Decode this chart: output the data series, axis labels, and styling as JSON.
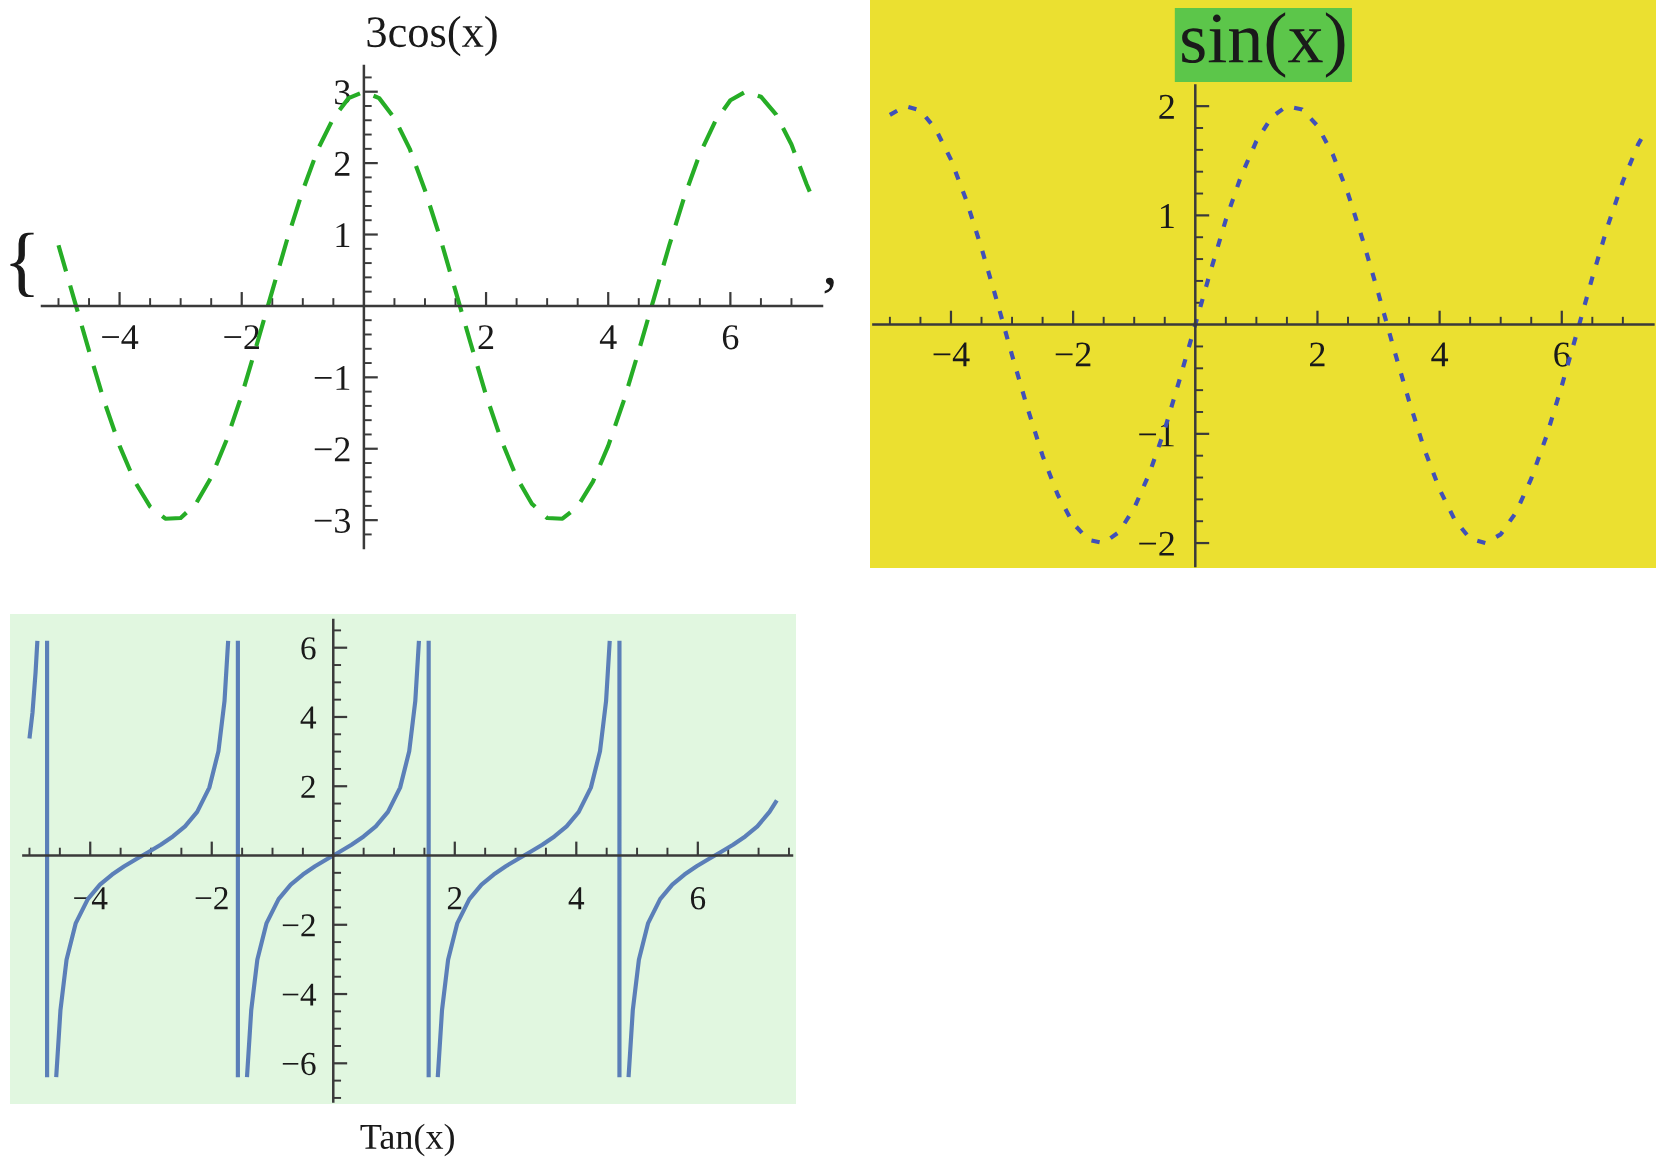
{
  "chart_data": [
    {
      "type": "line",
      "title": "3cos(x)",
      "line_style": "dashed",
      "annotations": [
        "{",
        ","
      ],
      "x": [
        -5,
        -4.75,
        -4.5,
        -4.25,
        -4,
        -3.75,
        -3.5,
        -3.25,
        -3,
        -2.75,
        -2.5,
        -2.25,
        -2,
        -1.75,
        -1.5,
        -1.25,
        -1,
        -0.75,
        -0.5,
        -0.25,
        0,
        0.25,
        0.5,
        0.75,
        1,
        1.25,
        1.5,
        1.75,
        2,
        2.25,
        2.5,
        2.75,
        3,
        3.25,
        3.5,
        3.75,
        4,
        4.25,
        4.5,
        4.75,
        5,
        5.25,
        5.5,
        5.75,
        6,
        6.25,
        6.5,
        6.75,
        7,
        7.25,
        7.3
      ],
      "series": [
        {
          "color": "#26ad26",
          "values": [
            0.85,
            0.11,
            -0.63,
            -1.34,
            -1.96,
            -2.46,
            -2.81,
            -2.98,
            -2.97,
            -2.77,
            -2.4,
            -1.88,
            -1.25,
            -0.53,
            0.21,
            0.95,
            1.62,
            2.2,
            2.63,
            2.91,
            3.0,
            2.91,
            2.63,
            2.2,
            1.62,
            0.95,
            0.21,
            -0.53,
            -1.25,
            -1.88,
            -2.4,
            -2.77,
            -2.97,
            -2.98,
            -2.81,
            -2.46,
            -1.96,
            -1.34,
            -0.63,
            0.11,
            0.85,
            1.54,
            2.13,
            2.58,
            2.88,
            3.0,
            2.93,
            2.68,
            2.26,
            1.7,
            1.6
          ]
        }
      ],
      "xlim": [
        -5.27,
        7.5
      ],
      "ylim": [
        -3.39,
        3.36
      ],
      "xticks": [
        {
          "value": -5,
          "label": null
        },
        {
          "value": -4.5,
          "label": null
        },
        {
          "value": -4,
          "label": "−4"
        },
        {
          "value": -3.5,
          "label": null
        },
        {
          "value": -3,
          "label": null
        },
        {
          "value": -2.5,
          "label": null
        },
        {
          "value": -2,
          "label": "−2"
        },
        {
          "value": -1.5,
          "label": null
        },
        {
          "value": -1,
          "label": null
        },
        {
          "value": -0.5,
          "label": null
        },
        {
          "value": 0.5,
          "label": null
        },
        {
          "value": 1,
          "label": null
        },
        {
          "value": 1.5,
          "label": null
        },
        2,
        {
          "value": 2.5,
          "label": null
        },
        {
          "value": 3,
          "label": null
        },
        {
          "value": 3.5,
          "label": null
        },
        4,
        {
          "value": 4.5,
          "label": null
        },
        {
          "value": 5,
          "label": null
        },
        {
          "value": 5.5,
          "label": null
        },
        6,
        {
          "value": 6.5,
          "label": null
        },
        {
          "value": 7,
          "label": null
        }
      ],
      "yticks": [
        {
          "value": -3.2,
          "label": null
        },
        {
          "value": -3,
          "label": "−3"
        },
        {
          "value": -2.8,
          "label": null
        },
        {
          "value": -2.6,
          "label": null
        },
        {
          "value": -2.4,
          "label": null
        },
        {
          "value": -2.2,
          "label": null
        },
        {
          "value": -2,
          "label": "−2"
        },
        {
          "value": -1.8,
          "label": null
        },
        {
          "value": -1.6,
          "label": null
        },
        {
          "value": -1.4,
          "label": null
        },
        {
          "value": -1.2,
          "label": null
        },
        {
          "value": -1,
          "label": "−1"
        },
        {
          "value": -0.8,
          "label": null
        },
        {
          "value": -0.6,
          "label": null
        },
        {
          "value": -0.4,
          "label": null
        },
        {
          "value": -0.2,
          "label": null
        },
        {
          "value": 0.2,
          "label": null
        },
        {
          "value": 0.4,
          "label": null
        },
        {
          "value": 0.6,
          "label": null
        },
        {
          "value": 0.8,
          "label": null
        },
        1,
        {
          "value": 1.2,
          "label": null
        },
        {
          "value": 1.4,
          "label": null
        },
        {
          "value": 1.6,
          "label": null
        },
        {
          "value": 1.8,
          "label": null
        },
        2,
        {
          "value": 2.2,
          "label": null
        },
        {
          "value": 2.4,
          "label": null
        },
        {
          "value": 2.6,
          "label": null
        },
        {
          "value": 2.8,
          "label": null
        },
        3,
        {
          "value": 3.2,
          "label": null
        }
      ]
    },
    {
      "type": "line",
      "title": "sin(x)",
      "line_style": "dotted",
      "x": [
        -5,
        -4.75,
        -4.5,
        -4.25,
        -4,
        -3.75,
        -3.5,
        -3.25,
        -3,
        -2.75,
        -2.5,
        -2.25,
        -2,
        -1.75,
        -1.5,
        -1.25,
        -1,
        -0.75,
        -0.5,
        -0.25,
        0,
        0.25,
        0.5,
        0.75,
        1,
        1.25,
        1.5,
        1.75,
        2,
        2.25,
        2.5,
        2.75,
        3,
        3.25,
        3.5,
        3.75,
        4,
        4.25,
        4.5,
        4.75,
        5,
        5.25,
        5.5,
        5.75,
        6,
        6.25,
        6.5,
        6.75,
        7,
        7.25,
        7.3
      ],
      "series": [
        {
          "color": "#4050b8",
          "values": [
            1.92,
            2.0,
            1.96,
            1.79,
            1.51,
            1.14,
            0.7,
            0.22,
            -0.28,
            -0.76,
            -1.2,
            -1.56,
            -1.82,
            -1.97,
            -2.0,
            -1.9,
            -1.68,
            -1.36,
            -0.96,
            -0.49,
            0,
            0.49,
            0.96,
            1.36,
            1.68,
            1.9,
            2.0,
            1.97,
            1.82,
            1.56,
            1.2,
            0.76,
            0.28,
            -0.22,
            -0.7,
            -1.14,
            -1.51,
            -1.79,
            -1.96,
            -2.0,
            -1.92,
            -1.72,
            -1.41,
            -1.02,
            -0.56,
            -0.07,
            0.43,
            0.9,
            1.31,
            1.65,
            1.7
          ]
        }
      ],
      "xlim": [
        -5.27,
        7.5
      ],
      "ylim": [
        -2.21,
        2.19
      ],
      "xticks": [
        {
          "value": -5,
          "label": null
        },
        {
          "value": -4.5,
          "label": null
        },
        {
          "value": -4,
          "label": "−4"
        },
        {
          "value": -3.5,
          "label": null
        },
        {
          "value": -3,
          "label": null
        },
        {
          "value": -2.5,
          "label": null
        },
        {
          "value": -2,
          "label": "−2"
        },
        {
          "value": -1.5,
          "label": null
        },
        {
          "value": -1,
          "label": null
        },
        {
          "value": -0.5,
          "label": null
        },
        {
          "value": 0.5,
          "label": null
        },
        {
          "value": 1,
          "label": null
        },
        {
          "value": 1.5,
          "label": null
        },
        2,
        {
          "value": 2.5,
          "label": null
        },
        {
          "value": 3,
          "label": null
        },
        {
          "value": 3.5,
          "label": null
        },
        4,
        {
          "value": 4.5,
          "label": null
        },
        {
          "value": 5,
          "label": null
        },
        {
          "value": 5.5,
          "label": null
        },
        6,
        {
          "value": 6.5,
          "label": null
        },
        {
          "value": 7,
          "label": null
        }
      ],
      "yticks": [
        {
          "value": -2,
          "label": "−2"
        },
        {
          "value": -1.8,
          "label": null
        },
        {
          "value": -1.6,
          "label": null
        },
        {
          "value": -1.4,
          "label": null
        },
        {
          "value": -1.2,
          "label": null
        },
        {
          "value": -1,
          "label": "−1"
        },
        {
          "value": -0.8,
          "label": null
        },
        {
          "value": -0.6,
          "label": null
        },
        {
          "value": -0.4,
          "label": null
        },
        {
          "value": -0.2,
          "label": null
        },
        {
          "value": 0.2,
          "label": null
        },
        {
          "value": 0.4,
          "label": null
        },
        {
          "value": 0.6,
          "label": null
        },
        {
          "value": 0.8,
          "label": null
        },
        1,
        {
          "value": 1.2,
          "label": null
        },
        {
          "value": 1.4,
          "label": null
        },
        {
          "value": 1.6,
          "label": null
        },
        {
          "value": 1.8,
          "label": null
        },
        2
      ]
    },
    {
      "type": "line",
      "xlabel": "Tan(x)",
      "line_style": "solid",
      "x": [
        -5,
        -4.95,
        -4.9,
        -4.87,
        -4.8,
        -4.71,
        -4.71,
        -4.63,
        -4.56,
        -4.49,
        -4.39,
        -4.24,
        -4.04,
        -3.84,
        -3.64,
        -3.44,
        -3.24,
        -3.14,
        -3.04,
        -2.84,
        -2.64,
        -2.44,
        -2.24,
        -2.04,
        -1.89,
        -1.79,
        -1.73,
        -1.65,
        -1.57,
        -1.57,
        -1.5,
        -1.42,
        -1.35,
        -1.25,
        -1.1,
        -0.9,
        -0.7,
        -0.5,
        -0.3,
        -0.1,
        0,
        0.1,
        0.3,
        0.5,
        0.7,
        0.9,
        1.1,
        1.25,
        1.35,
        1.41,
        1.49,
        1.57,
        1.57,
        1.65,
        1.72,
        1.79,
        1.89,
        2.04,
        2.24,
        2.44,
        2.64,
        2.84,
        3.04,
        3.14,
        3.24,
        3.44,
        3.64,
        3.84,
        4.04,
        4.24,
        4.39,
        4.49,
        4.55,
        4.63,
        4.71,
        4.71,
        4.79,
        4.86,
        4.93,
        5.03,
        5.18,
        5.38,
        5.58,
        5.78,
        5.98,
        6.18,
        6.28,
        6.38,
        6.58,
        6.78,
        6.98,
        7.18,
        7.3
      ],
      "series": [
        {
          "color": "#5b7fb8",
          "values": [
            3.38,
            4.13,
            5.28,
            6.2,
            null,
            6.2,
            -6.4,
            null,
            -6.4,
            -4.46,
            -3.01,
            -1.96,
            -1.26,
            -0.84,
            -0.55,
            -0.31,
            -0.1,
            0,
            0.1,
            0.31,
            0.55,
            0.84,
            1.26,
            1.96,
            3.01,
            4.46,
            6.2,
            null,
            6.2,
            -6.4,
            null,
            -6.4,
            -4.46,
            -3.01,
            -1.96,
            -1.26,
            -0.84,
            -0.55,
            -0.31,
            -0.1,
            0,
            0.1,
            0.31,
            0.55,
            0.84,
            1.26,
            1.96,
            3.01,
            4.46,
            6.2,
            null,
            6.2,
            -6.4,
            null,
            -6.4,
            -4.46,
            -3.01,
            -1.96,
            -1.26,
            -0.84,
            -0.55,
            -0.31,
            -0.1,
            0,
            0.1,
            0.31,
            0.55,
            0.84,
            1.26,
            1.96,
            3.01,
            4.46,
            6.2,
            null,
            6.2,
            -6.4,
            null,
            -6.4,
            -4.46,
            -3.01,
            -1.96,
            -1.26,
            -0.84,
            -0.55,
            -0.31,
            -0.1,
            0,
            0.1,
            0.31,
            0.55,
            0.84,
            1.26,
            1.59
          ]
        }
      ],
      "xlim": [
        -5.1,
        7.55
      ],
      "ylim": [
        -7.1,
        6.8
      ],
      "xticks": [
        {
          "value": -5,
          "label": null
        },
        {
          "value": -4.5,
          "label": null
        },
        {
          "value": -4,
          "label": "−4"
        },
        {
          "value": -3.5,
          "label": null
        },
        {
          "value": -3,
          "label": null
        },
        {
          "value": -2.5,
          "label": null
        },
        {
          "value": -2,
          "label": "−2"
        },
        {
          "value": -1.5,
          "label": null
        },
        {
          "value": -1,
          "label": null
        },
        {
          "value": -0.5,
          "label": null
        },
        {
          "value": 0.5,
          "label": null
        },
        {
          "value": 1,
          "label": null
        },
        {
          "value": 1.5,
          "label": null
        },
        2,
        {
          "value": 2.5,
          "label": null
        },
        {
          "value": 3,
          "label": null
        },
        {
          "value": 3.5,
          "label": null
        },
        4,
        {
          "value": 4.5,
          "label": null
        },
        {
          "value": 5,
          "label": null
        },
        {
          "value": 5.5,
          "label": null
        },
        6,
        {
          "value": 6.5,
          "label": null
        },
        {
          "value": 7,
          "label": null
        },
        {
          "value": 7.5,
          "label": null
        }
      ],
      "yticks": [
        {
          "value": -7,
          "label": null
        },
        {
          "value": -6.5,
          "label": null
        },
        {
          "value": -6,
          "label": "−6"
        },
        {
          "value": -5.5,
          "label": null
        },
        {
          "value": -5,
          "label": null
        },
        {
          "value": -4.5,
          "label": null
        },
        {
          "value": -4,
          "label": "−4"
        },
        {
          "value": -3.5,
          "label": null
        },
        {
          "value": -3,
          "label": null
        },
        {
          "value": -2.5,
          "label": null
        },
        {
          "value": -2,
          "label": "−2"
        },
        {
          "value": -1.5,
          "label": null
        },
        {
          "value": -1,
          "label": null
        },
        {
          "value": -0.5,
          "label": null
        },
        {
          "value": 0.5,
          "label": null
        },
        {
          "value": 1,
          "label": null
        },
        {
          "value": 1.5,
          "label": null
        },
        2,
        {
          "value": 2.5,
          "label": null
        },
        {
          "value": 3,
          "label": null
        },
        {
          "value": 3.5,
          "label": null
        },
        4,
        {
          "value": 4.5,
          "label": null
        },
        {
          "value": 5,
          "label": null
        },
        {
          "value": 5.5,
          "label": null
        },
        6,
        {
          "value": 6.5,
          "label": null
        }
      ]
    }
  ]
}
